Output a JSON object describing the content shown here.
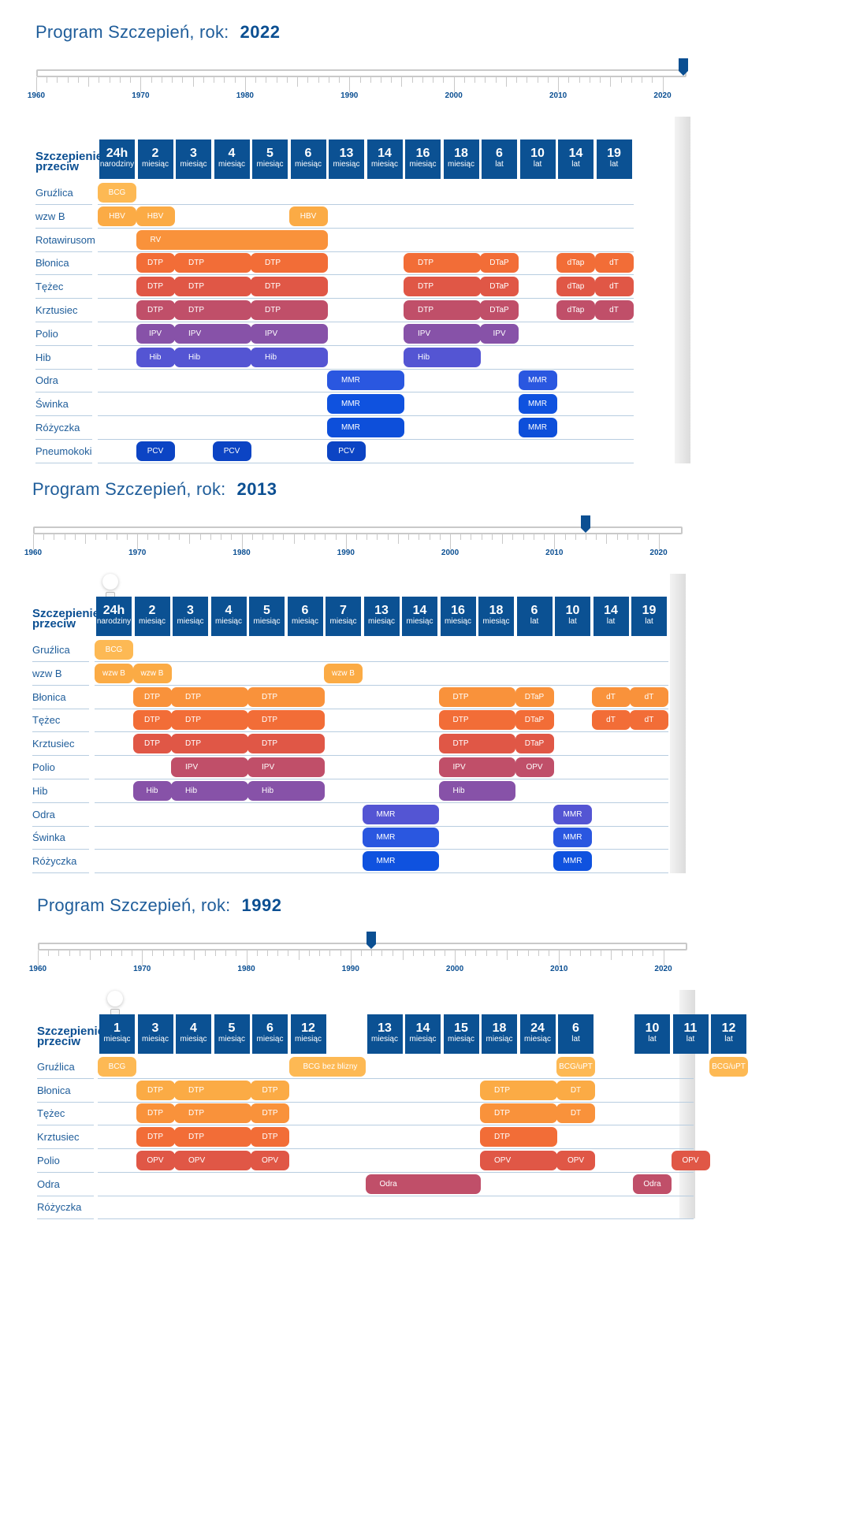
{
  "colors": {
    "brand": "#0b4f92",
    "tile": "#0b5193",
    "grid": "#b8cde0"
  },
  "axis": {
    "min_year": 1960,
    "max_year": 2022,
    "labels": [
      "1960",
      "1970",
      "1980",
      "1990",
      "2000",
      "2010",
      "2020"
    ]
  },
  "corner_label": "Szczepienie przeciw",
  "sections": [
    {
      "title": "Program Szczepień, rok:",
      "year": "2022",
      "selected_year": 2022,
      "columns": [
        {
          "num": "24h",
          "unit": "narodziny"
        },
        {
          "num": "2",
          "unit": "miesiąc"
        },
        {
          "num": "3",
          "unit": "miesiąc"
        },
        {
          "num": "4",
          "unit": "miesiąc"
        },
        {
          "num": "5",
          "unit": "miesiąc"
        },
        {
          "num": "6",
          "unit": "miesiąc"
        },
        {
          "num": "13",
          "unit": "miesiąc"
        },
        {
          "num": "14",
          "unit": "miesiąc"
        },
        {
          "num": "16",
          "unit": "miesiąc"
        },
        {
          "num": "18",
          "unit": "miesiąc"
        },
        {
          "num": "6",
          "unit": "lat"
        },
        {
          "num": "10",
          "unit": "lat"
        },
        {
          "num": "14",
          "unit": "lat"
        },
        {
          "num": "19",
          "unit": "lat"
        }
      ],
      "rows": [
        {
          "label": "Gruźlica",
          "color": "#fdb954",
          "doses": [
            {
              "label": "BCG",
              "from": 0,
              "to": 0
            }
          ]
        },
        {
          "label": "wzw B",
          "color": "#fbab45",
          "doses": [
            {
              "label": "HBV",
              "from": 0,
              "to": 0
            },
            {
              "label": "HBV",
              "from": 1,
              "to": 1
            },
            {
              "label": "HBV",
              "from": 5,
              "to": 5
            }
          ]
        },
        {
          "label": "Rotawirusom",
          "color": "#f9923b",
          "doses": [
            {
              "label": "RV",
              "from": 1,
              "to": 5
            }
          ]
        },
        {
          "label": "Błonica",
          "color": "#f26d37",
          "doses": [
            {
              "label": "DTP",
              "from": 1,
              "to": 1
            },
            {
              "label": "DTP",
              "from": 2,
              "to": 3
            },
            {
              "label": "DTP",
              "from": 4,
              "to": 5
            },
            {
              "label": "DTP",
              "from": 8,
              "to": 9
            },
            {
              "label": "DTaP",
              "from": 10,
              "to": 10
            },
            {
              "label": "dTap",
              "from": 12,
              "to": 12
            },
            {
              "label": "dT",
              "from": 13,
              "to": 13
            }
          ]
        },
        {
          "label": "Tężec",
          "color": "#e05746",
          "doses": [
            {
              "label": "DTP",
              "from": 1,
              "to": 1
            },
            {
              "label": "DTP",
              "from": 2,
              "to": 3
            },
            {
              "label": "DTP",
              "from": 4,
              "to": 5
            },
            {
              "label": "DTP",
              "from": 8,
              "to": 9
            },
            {
              "label": "DTaP",
              "from": 10,
              "to": 10
            },
            {
              "label": "dTap",
              "from": 12,
              "to": 12
            },
            {
              "label": "dT",
              "from": 13,
              "to": 13
            }
          ]
        },
        {
          "label": "Krztusiec",
          "color": "#c04f69",
          "doses": [
            {
              "label": "DTP",
              "from": 1,
              "to": 1
            },
            {
              "label": "DTP",
              "from": 2,
              "to": 3
            },
            {
              "label": "DTP",
              "from": 4,
              "to": 5
            },
            {
              "label": "DTP",
              "from": 8,
              "to": 9
            },
            {
              "label": "DTaP",
              "from": 10,
              "to": 10
            },
            {
              "label": "dTap",
              "from": 12,
              "to": 12
            },
            {
              "label": "dT",
              "from": 13,
              "to": 13
            }
          ]
        },
        {
          "label": "Polio",
          "color": "#8752a8",
          "doses": [
            {
              "label": "IPV",
              "from": 1,
              "to": 1
            },
            {
              "label": "IPV",
              "from": 2,
              "to": 3
            },
            {
              "label": "IPV",
              "from": 4,
              "to": 5
            },
            {
              "label": "IPV",
              "from": 8,
              "to": 9
            },
            {
              "label": "IPV",
              "from": 10,
              "to": 10
            }
          ]
        },
        {
          "label": "Hib",
          "color": "#5455d3",
          "doses": [
            {
              "label": "Hib",
              "from": 1,
              "to": 1
            },
            {
              "label": "Hib",
              "from": 2,
              "to": 3
            },
            {
              "label": "Hib",
              "from": 4,
              "to": 5
            },
            {
              "label": "Hib",
              "from": 8,
              "to": 9
            }
          ]
        },
        {
          "label": "Odra",
          "color": "#2a57e0",
          "doses": [
            {
              "label": "MMR",
              "from": 6,
              "to": 7
            },
            {
              "label": "MMR",
              "from": 11,
              "to": 11
            }
          ]
        },
        {
          "label": "Świnka",
          "color": "#0f52df",
          "doses": [
            {
              "label": "MMR",
              "from": 6,
              "to": 7
            },
            {
              "label": "MMR",
              "from": 11,
              "to": 11
            }
          ]
        },
        {
          "label": "Różyczka",
          "color": "#0d4fda",
          "doses": [
            {
              "label": "MMR",
              "from": 6,
              "to": 7
            },
            {
              "label": "MMR",
              "from": 11,
              "to": 11
            }
          ]
        },
        {
          "label": "Pneumokoki",
          "color": "#0c44c4",
          "doses": [
            {
              "label": "PCV",
              "from": 1,
              "to": 1
            },
            {
              "label": "PCV",
              "from": 3,
              "to": 3
            },
            {
              "label": "PCV",
              "from": 6,
              "to": 6
            }
          ]
        }
      ]
    },
    {
      "title": "Program Szczepień, rok:",
      "year": "2013",
      "selected_year": 2013,
      "columns": [
        {
          "num": "24h",
          "unit": "narodziny"
        },
        {
          "num": "2",
          "unit": "miesiąc"
        },
        {
          "num": "3",
          "unit": "miesiąc"
        },
        {
          "num": "4",
          "unit": "miesiąc"
        },
        {
          "num": "5",
          "unit": "miesiąc"
        },
        {
          "num": "6",
          "unit": "miesiąc"
        },
        {
          "num": "7",
          "unit": "miesiąc"
        },
        {
          "num": "13",
          "unit": "miesiąc"
        },
        {
          "num": "14",
          "unit": "miesiąc"
        },
        {
          "num": "16",
          "unit": "miesiąc"
        },
        {
          "num": "18",
          "unit": "miesiąc"
        },
        {
          "num": "6",
          "unit": "lat"
        },
        {
          "num": "10",
          "unit": "lat"
        },
        {
          "num": "14",
          "unit": "lat"
        },
        {
          "num": "19",
          "unit": "lat"
        }
      ],
      "rows": [
        {
          "label": "Gruźlica",
          "color": "#fdb954",
          "doses": [
            {
              "label": "BCG",
              "from": 0,
              "to": 0
            }
          ]
        },
        {
          "label": "wzw B",
          "color": "#fbab45",
          "doses": [
            {
              "label": "wzw B",
              "from": 0,
              "to": 0
            },
            {
              "label": "wzw B",
              "from": 1,
              "to": 1
            },
            {
              "label": "wzw B",
              "from": 6,
              "to": 6
            }
          ]
        },
        {
          "label": "Błonica",
          "color": "#f9923b",
          "doses": [
            {
              "label": "DTP",
              "from": 1,
              "to": 1
            },
            {
              "label": "DTP",
              "from": 2,
              "to": 3
            },
            {
              "label": "DTP",
              "from": 4,
              "to": 5
            },
            {
              "label": "DTP",
              "from": 9,
              "to": 10
            },
            {
              "label": "DTaP",
              "from": 11,
              "to": 11
            },
            {
              "label": "dT",
              "from": 13,
              "to": 13
            },
            {
              "label": "dT",
              "from": 14,
              "to": 14
            }
          ]
        },
        {
          "label": "Tężec",
          "color": "#f26d37",
          "doses": [
            {
              "label": "DTP",
              "from": 1,
              "to": 1
            },
            {
              "label": "DTP",
              "from": 2,
              "to": 3
            },
            {
              "label": "DTP",
              "from": 4,
              "to": 5
            },
            {
              "label": "DTP",
              "from": 9,
              "to": 10
            },
            {
              "label": "DTaP",
              "from": 11,
              "to": 11
            },
            {
              "label": "dT",
              "from": 13,
              "to": 13
            },
            {
              "label": "dT",
              "from": 14,
              "to": 14
            }
          ]
        },
        {
          "label": "Krztusiec",
          "color": "#e05746",
          "doses": [
            {
              "label": "DTP",
              "from": 1,
              "to": 1
            },
            {
              "label": "DTP",
              "from": 2,
              "to": 3
            },
            {
              "label": "DTP",
              "from": 4,
              "to": 5
            },
            {
              "label": "DTP",
              "from": 9,
              "to": 10
            },
            {
              "label": "DTaP",
              "from": 11,
              "to": 11
            }
          ]
        },
        {
          "label": "Polio",
          "color": "#c04f69",
          "doses": [
            {
              "label": "IPV",
              "from": 2,
              "to": 3
            },
            {
              "label": "IPV",
              "from": 4,
              "to": 5
            },
            {
              "label": "IPV",
              "from": 9,
              "to": 10
            },
            {
              "label": "OPV",
              "from": 11,
              "to": 11
            }
          ]
        },
        {
          "label": "Hib",
          "color": "#8752a8",
          "doses": [
            {
              "label": "Hib",
              "from": 1,
              "to": 1
            },
            {
              "label": "Hib",
              "from": 2,
              "to": 3
            },
            {
              "label": "Hib",
              "from": 4,
              "to": 5
            },
            {
              "label": "Hib",
              "from": 9,
              "to": 10
            }
          ]
        },
        {
          "label": "Odra",
          "color": "#5455d3",
          "doses": [
            {
              "label": "MMR",
              "from": 7,
              "to": 8
            },
            {
              "label": "MMR",
              "from": 12,
              "to": 12
            }
          ]
        },
        {
          "label": "Świnka",
          "color": "#2a57e0",
          "doses": [
            {
              "label": "MMR",
              "from": 7,
              "to": 8
            },
            {
              "label": "MMR",
              "from": 12,
              "to": 12
            }
          ]
        },
        {
          "label": "Różyczka",
          "color": "#0f52df",
          "doses": [
            {
              "label": "MMR",
              "from": 7,
              "to": 8
            },
            {
              "label": "MMR",
              "from": 12,
              "to": 12
            }
          ]
        }
      ]
    },
    {
      "title": "Program Szczepień, rok:",
      "year": "1992",
      "selected_year": 1992,
      "columns": [
        {
          "num": "1",
          "unit": "miesiąc"
        },
        {
          "num": "3",
          "unit": "miesiąc"
        },
        {
          "num": "4",
          "unit": "miesiąc"
        },
        {
          "num": "5",
          "unit": "miesiąc"
        },
        {
          "num": "6",
          "unit": "miesiąc"
        },
        {
          "num": "12",
          "unit": "miesiąc"
        },
        {
          "num": "",
          "unit": "",
          "gap": true
        },
        {
          "num": "13",
          "unit": "miesiąc"
        },
        {
          "num": "14",
          "unit": "miesiąc"
        },
        {
          "num": "15",
          "unit": "miesiąc"
        },
        {
          "num": "18",
          "unit": "miesiąc"
        },
        {
          "num": "24",
          "unit": "miesiąc"
        },
        {
          "num": "6",
          "unit": "lat"
        },
        {
          "num": "",
          "unit": "",
          "gap": true
        },
        {
          "num": "10",
          "unit": "lat"
        },
        {
          "num": "11",
          "unit": "lat"
        },
        {
          "num": "12",
          "unit": "lat"
        }
      ],
      "rows": [
        {
          "label": "Gruźlica",
          "color": "#fdb954",
          "doses": [
            {
              "label": "BCG",
              "from": 0,
              "to": 0
            },
            {
              "label": "BCG bez blizny",
              "from": 5,
              "to": 6
            },
            {
              "label": "BCG/uPT",
              "from": 12,
              "to": 12
            },
            {
              "label": "BCG/uPT",
              "from": 16,
              "to": 16
            }
          ]
        },
        {
          "label": "Błonica",
          "color": "#fbab45",
          "doses": [
            {
              "label": "DTP",
              "from": 1,
              "to": 1
            },
            {
              "label": "DTP",
              "from": 2,
              "to": 3
            },
            {
              "label": "DTP",
              "from": 4,
              "to": 4
            },
            {
              "label": "DTP",
              "from": 10,
              "to": 11
            },
            {
              "label": "DT",
              "from": 12,
              "to": 12
            }
          ]
        },
        {
          "label": "Tężec",
          "color": "#f9923b",
          "doses": [
            {
              "label": "DTP",
              "from": 1,
              "to": 1
            },
            {
              "label": "DTP",
              "from": 2,
              "to": 3
            },
            {
              "label": "DTP",
              "from": 4,
              "to": 4
            },
            {
              "label": "DTP",
              "from": 10,
              "to": 11
            },
            {
              "label": "DT",
              "from": 12,
              "to": 12
            }
          ]
        },
        {
          "label": "Krztusiec",
          "color": "#f26d37",
          "doses": [
            {
              "label": "DTP",
              "from": 1,
              "to": 1
            },
            {
              "label": "DTP",
              "from": 2,
              "to": 3
            },
            {
              "label": "DTP",
              "from": 4,
              "to": 4
            },
            {
              "label": "DTP",
              "from": 10,
              "to": 11
            }
          ]
        },
        {
          "label": "Polio",
          "color": "#e05746",
          "doses": [
            {
              "label": "OPV",
              "from": 1,
              "to": 1
            },
            {
              "label": "OPV",
              "from": 2,
              "to": 3
            },
            {
              "label": "OPV",
              "from": 4,
              "to": 4
            },
            {
              "label": "OPV",
              "from": 10,
              "to": 11
            },
            {
              "label": "OPV",
              "from": 12,
              "to": 12
            },
            {
              "label": "OPV",
              "from": 15,
              "to": 15
            }
          ]
        },
        {
          "label": "Odra",
          "color": "#c04f69",
          "doses": [
            {
              "label": "Odra",
              "from": 7,
              "to": 9
            },
            {
              "label": "Odra",
              "from": 14,
              "to": 14
            }
          ]
        },
        {
          "label": "Różyczka",
          "color": "#c04f69",
          "doses": []
        }
      ]
    }
  ]
}
